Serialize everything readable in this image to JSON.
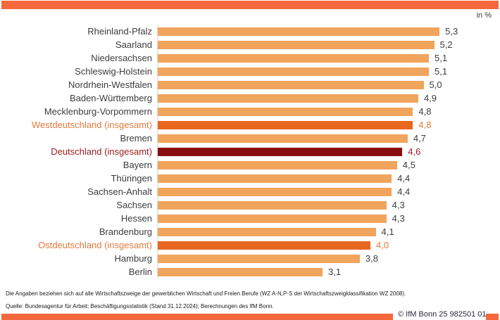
{
  "page": {
    "background": "#FFFFFF",
    "accent_strip_color": "#F4683C",
    "axis_line_color": "#DBDBDB"
  },
  "header": {
    "unit_label": "in %"
  },
  "chart_data": {
    "type": "bar",
    "orientation": "horizontal",
    "title": "",
    "xlabel": "",
    "ylabel": "",
    "unit": "in %",
    "xlim": [
      0,
      5.5
    ],
    "grid": false,
    "legend": "none",
    "categories": [
      "Rheinland-Pfalz",
      "Saarland",
      "Niedersachsen",
      "Schleswig-Holstein",
      "Nordrhein-Westfalen",
      "Baden-Württemberg",
      "Mecklenburg-Vorpommern",
      "Westdeutschland (insgesamt)",
      "Bremen",
      "Deutschland (insgesamt)",
      "Bayern",
      "Thüringen",
      "Sachsen-Anhalt",
      "Sachsen",
      "Hessen",
      "Brandenburg",
      "Ostdeutschland (insgesamt)",
      "Hamburg",
      "Berlin"
    ],
    "values": [
      5.3,
      5.2,
      5.1,
      5.1,
      5.0,
      4.9,
      4.8,
      4.8,
      4.7,
      4.6,
      4.5,
      4.4,
      4.4,
      4.3,
      4.3,
      4.1,
      4.0,
      3.8,
      3.1
    ],
    "value_labels": [
      "5,3",
      "5,2",
      "5,1",
      "5,1",
      "5,0",
      "4,9",
      "4,8",
      "4,8",
      "4,7",
      "4,6",
      "4,5",
      "4,4",
      "4,4",
      "4,3",
      "4,3",
      "4,1",
      "4,0",
      "3,8",
      "3,1"
    ],
    "bar_styles": [
      "default",
      "default",
      "default",
      "default",
      "default",
      "default",
      "default",
      "aggregate",
      "default",
      "germany",
      "default",
      "default",
      "default",
      "default",
      "default",
      "default",
      "aggregate",
      "default",
      "default"
    ],
    "styles": {
      "default": {
        "bar": "#F1A45C",
        "text": "#3C3C3C"
      },
      "aggregate": {
        "bar": "#E8671F",
        "text": "#E4793C"
      },
      "germany": {
        "bar": "#8B0D10",
        "text": "#9B1B1B"
      }
    }
  },
  "footer": {
    "note": "Die Angaben beziehen sich auf alle Wirtschaftszweige der gewerblichen Wirtschaft und Freien Berufe (WZ A-N,P-S der Wirtschaftszweigklassifikation WZ 2008).",
    "source": "Quelle: Bundesagentur für Arbeit: Beschäftigungsstatistik (Stand 31.12.2024); Berechnungen des IfM Bonn.",
    "copyright": "© IfM Bonn 25 982501 01"
  }
}
